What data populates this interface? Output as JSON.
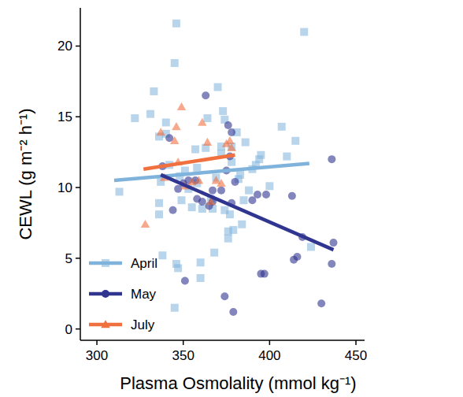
{
  "chart_data": {
    "type": "scatter",
    "xlabel": "Plasma Osmolality (mmol kg⁻¹)",
    "ylabel": "CEWL (g m⁻² h⁻¹)",
    "xlim": [
      290.4,
      455
    ],
    "ylim": [
      -0.8,
      22.7
    ],
    "xticks": [
      300,
      350,
      400,
      450
    ],
    "yticks": [
      0,
      5,
      10,
      15,
      20
    ],
    "grid": false,
    "legend": "lower left",
    "series": [
      {
        "name": "April",
        "color": "#7fb3dc",
        "marker": "square",
        "x": [
          313,
          322,
          331,
          336,
          340,
          333,
          346,
          345,
          340,
          342,
          337,
          336,
          336,
          338,
          346,
          347,
          345,
          349,
          348,
          351,
          353,
          357,
          358,
          358,
          360,
          360,
          361,
          363,
          364,
          366,
          367,
          368,
          369,
          370,
          372,
          372,
          373,
          374,
          374,
          376,
          376,
          377,
          378,
          378,
          381,
          383,
          385,
          386,
          388,
          390,
          392,
          394,
          395,
          400,
          407,
          410,
          415,
          420,
          424,
          382,
          384,
          379,
          355
        ],
        "values": [
          9.7,
          14.9,
          15.2,
          13.6,
          13.8,
          16.8,
          21.6,
          18.8,
          14.6,
          11.6,
          10.4,
          8.9,
          8.1,
          5.2,
          4.6,
          4.3,
          1.5,
          9.1,
          10.8,
          11.2,
          9.9,
          12.7,
          10.3,
          11.4,
          4.7,
          3.6,
          8.5,
          12.8,
          14.9,
          9.2,
          8.5,
          5.4,
          10.7,
          17.1,
          12.9,
          12.4,
          15.4,
          14.8,
          8.4,
          6.4,
          6.9,
          8.1,
          12.9,
          11.8,
          13.9,
          10.9,
          9.1,
          13.2,
          9.8,
          11.3,
          11.6,
          12.0,
          12.3,
          10.1,
          14.3,
          12.2,
          13.3,
          21.0,
          5.8,
          10.6,
          7.4,
          7.0,
          8.6
        ],
        "trend_x": [
          310,
          423
        ],
        "trend_values": [
          10.5,
          11.7
        ]
      },
      {
        "name": "May",
        "color": "#303590",
        "marker": "circle",
        "x": [
          338,
          342,
          344,
          347,
          350,
          351,
          353,
          357,
          358,
          361,
          363,
          365,
          367,
          372,
          374,
          375,
          376,
          377,
          378,
          379,
          380,
          390,
          393,
          395,
          397,
          398,
          413,
          414,
          416,
          419,
          430,
          436,
          437,
          436,
          367,
          378
        ],
        "values": [
          11.5,
          13.5,
          8.4,
          9.9,
          10.3,
          3.4,
          10.5,
          10.5,
          9.2,
          9.0,
          16.5,
          8.7,
          9.0,
          9.8,
          2.3,
          11.2,
          14.4,
          12.2,
          8.9,
          1.2,
          10.4,
          9.1,
          9.5,
          3.9,
          3.9,
          9.5,
          9.4,
          4.9,
          5.1,
          6.5,
          1.8,
          4.6,
          6.1,
          12.0,
          9.8,
          13.9
        ],
        "trend_x": [
          337,
          437
        ],
        "trend_values": [
          10.9,
          5.6
        ]
      },
      {
        "name": "July",
        "color": "#f0703f",
        "marker": "triangle",
        "x": [
          328,
          337,
          339,
          345,
          346,
          349,
          355,
          359,
          361,
          364,
          366,
          372,
          375,
          377,
          378,
          351,
          369,
          347
        ],
        "values": [
          7.4,
          13.9,
          10.7,
          13.3,
          14.3,
          15.7,
          10.4,
          10.5,
          14.6,
          13.2,
          9.0,
          10.3,
          13.1,
          13.3,
          12.8,
          10.1,
          10.5,
          11.8
        ],
        "trend_x": [
          327,
          380
        ],
        "trend_values": [
          11.3,
          12.3
        ]
      }
    ]
  }
}
